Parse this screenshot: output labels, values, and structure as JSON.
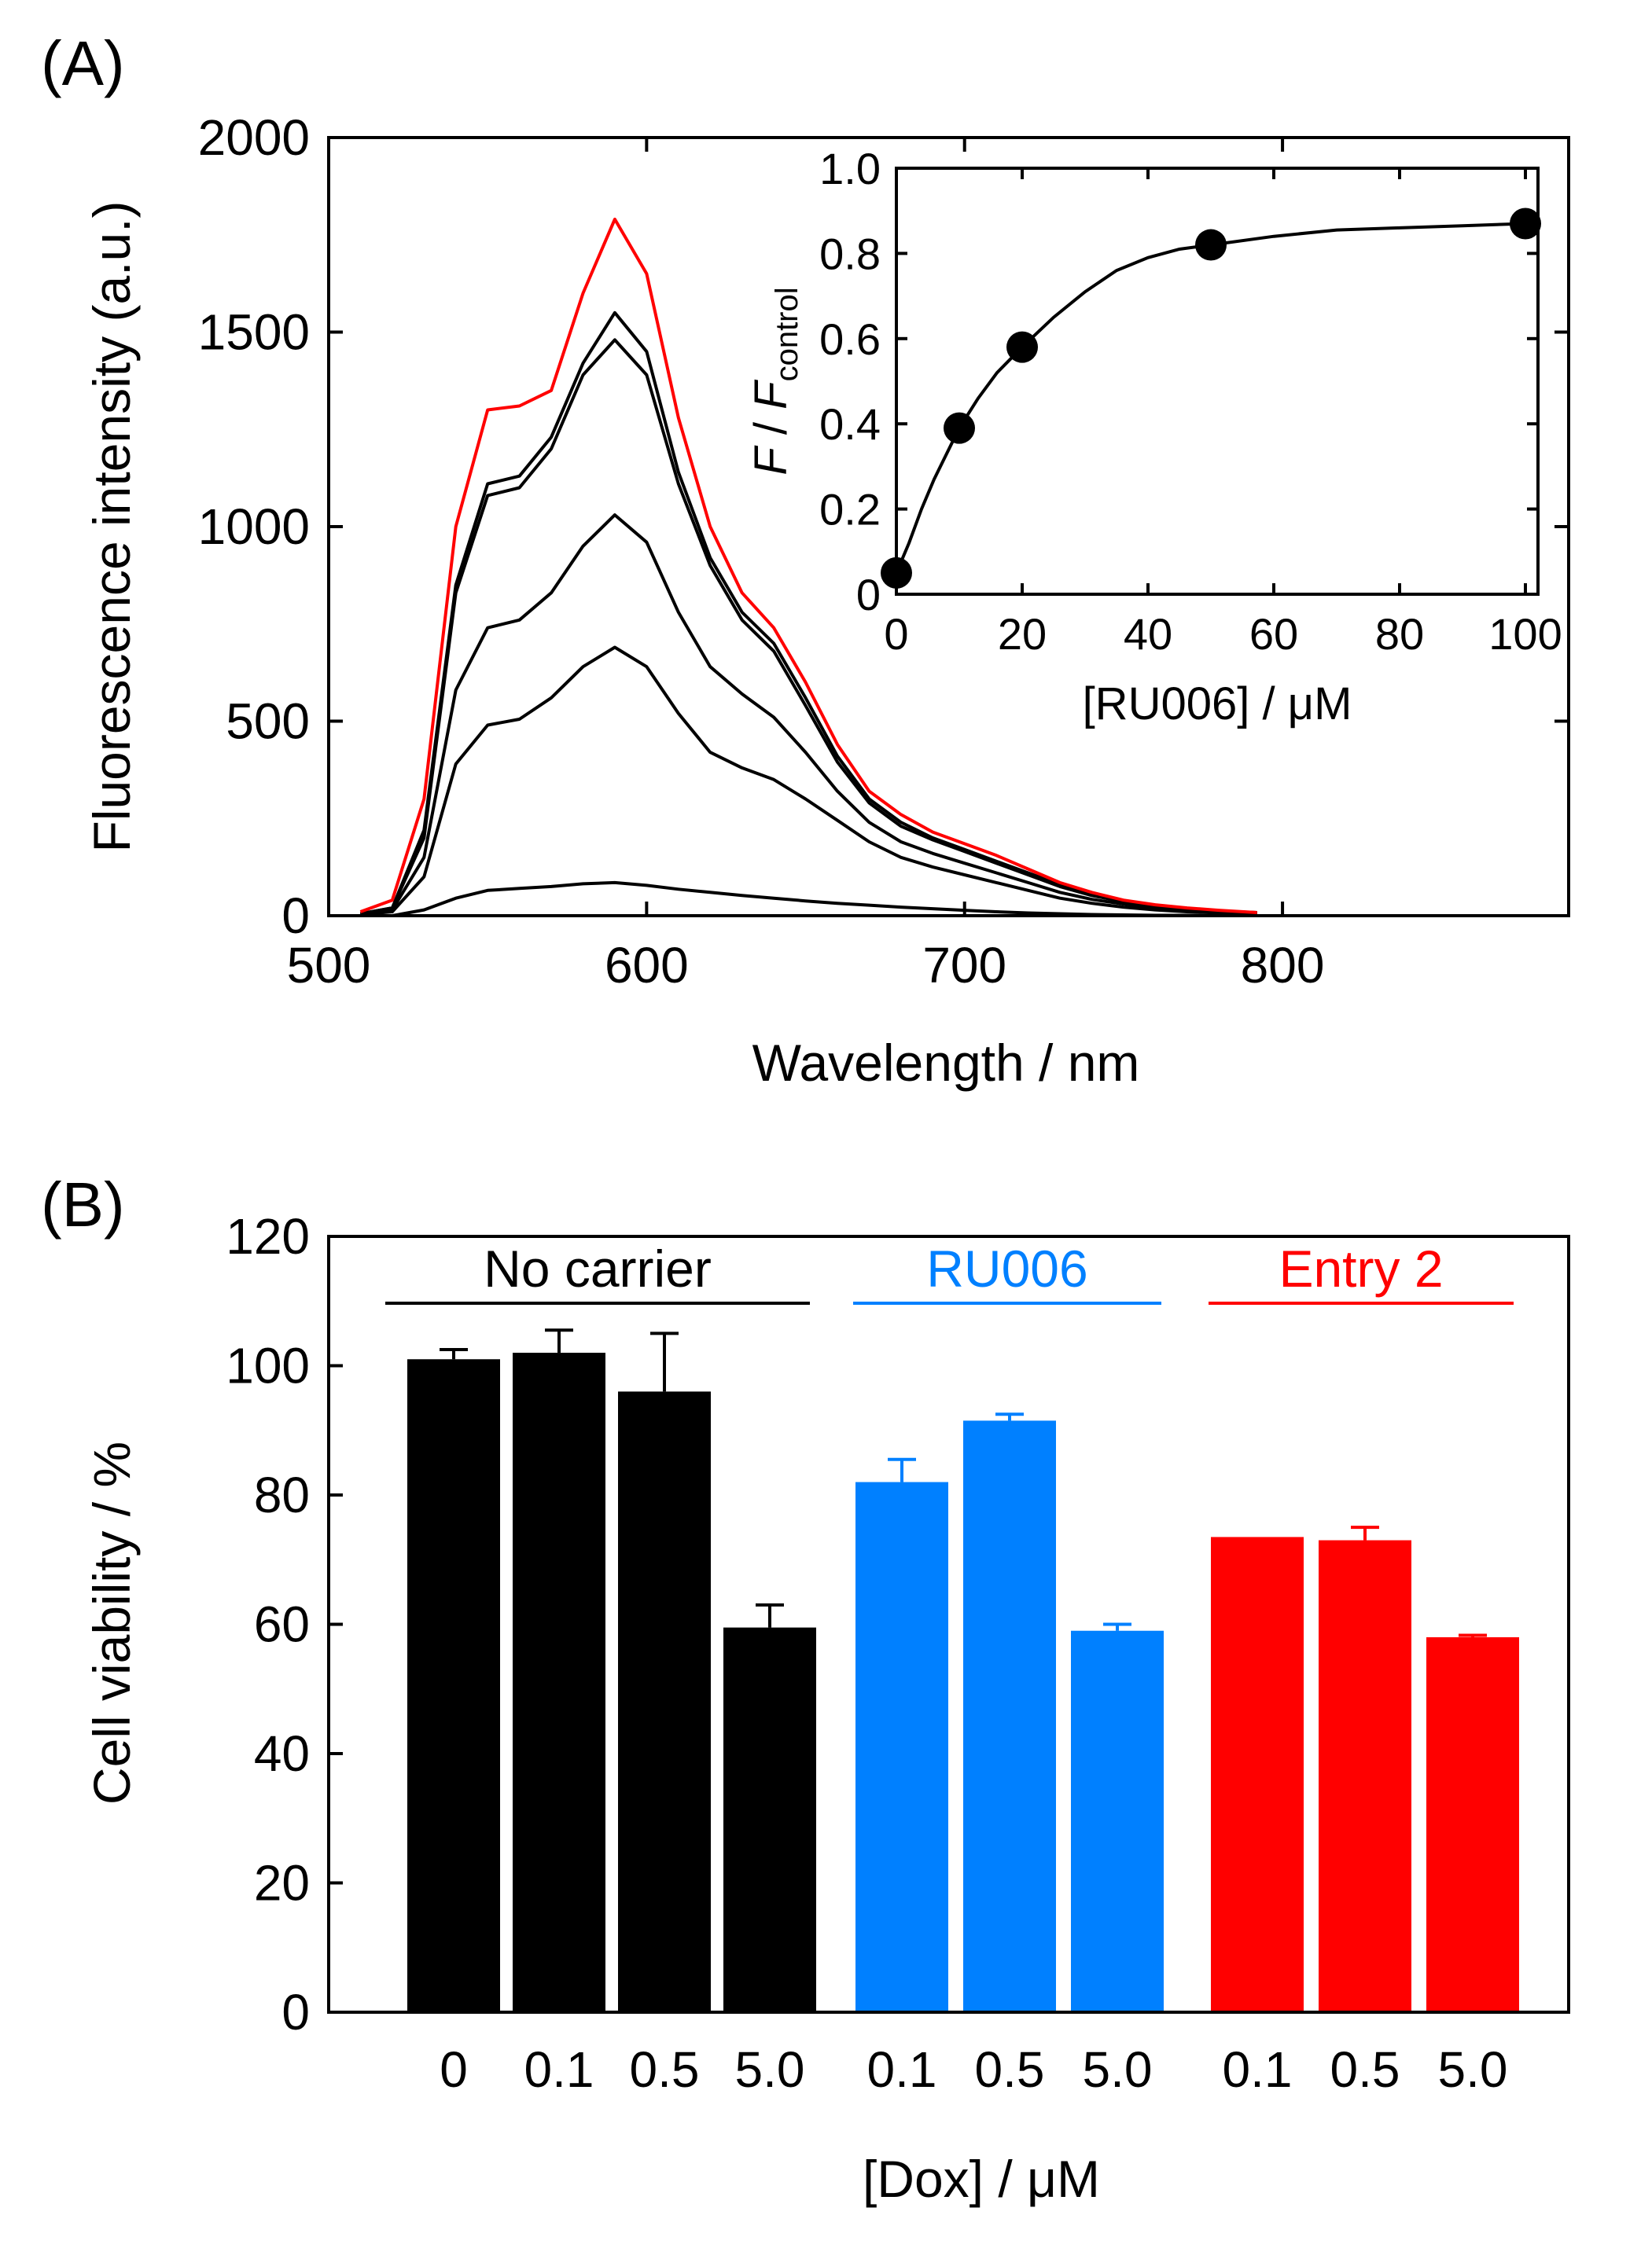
{
  "chart_data": [
    {
      "type": "line",
      "panel_label": "(A)",
      "xlabel": "Wavelength / nm",
      "ylabel": "Fluorescence intensity (a.u.)",
      "xlim": [
        500,
        890
      ],
      "ylim": [
        0,
        2000
      ],
      "xticks": [
        500,
        600,
        700,
        800
      ],
      "yticks": [
        0,
        500,
        1000,
        1500,
        2000
      ],
      "series": [
        {
          "name": "control",
          "color": "#ff0000",
          "x": [
            510,
            520,
            530,
            540,
            550,
            560,
            570,
            580,
            590,
            600,
            610,
            620,
            630,
            640,
            650,
            660,
            670,
            680,
            690,
            700,
            710,
            720,
            730,
            740,
            750,
            760,
            770,
            780,
            792
          ],
          "y": [
            10,
            40,
            300,
            1000,
            1300,
            1310,
            1350,
            1600,
            1790,
            1650,
            1280,
            1000,
            830,
            740,
            600,
            440,
            320,
            260,
            215,
            185,
            155,
            120,
            85,
            60,
            40,
            28,
            20,
            14,
            8
          ]
        },
        {
          "name": "trace-2",
          "color": "#000000",
          "x": [
            510,
            520,
            530,
            540,
            550,
            560,
            570,
            580,
            590,
            600,
            610,
            620,
            630,
            640,
            650,
            660,
            670,
            680,
            690,
            700,
            710,
            720,
            730,
            740,
            750,
            760,
            770,
            780,
            792
          ],
          "y": [
            5,
            20,
            220,
            850,
            1110,
            1130,
            1230,
            1420,
            1550,
            1450,
            1140,
            920,
            780,
            700,
            560,
            410,
            300,
            240,
            200,
            170,
            140,
            110,
            80,
            55,
            38,
            25,
            18,
            12,
            8
          ]
        },
        {
          "name": "trace-3",
          "color": "#000000",
          "x": [
            510,
            520,
            530,
            540,
            550,
            560,
            570,
            580,
            590,
            600,
            610,
            620,
            630,
            640,
            650,
            660,
            670,
            680,
            690,
            700,
            710,
            720,
            730,
            740,
            750,
            760,
            770,
            780,
            792
          ],
          "y": [
            5,
            20,
            200,
            830,
            1080,
            1100,
            1200,
            1390,
            1480,
            1390,
            1110,
            900,
            760,
            680,
            540,
            395,
            290,
            230,
            195,
            165,
            135,
            105,
            75,
            52,
            36,
            24,
            17,
            11,
            8
          ]
        },
        {
          "name": "trace-4",
          "color": "#000000",
          "x": [
            510,
            520,
            530,
            540,
            550,
            560,
            570,
            580,
            590,
            600,
            610,
            620,
            630,
            640,
            650,
            660,
            670,
            680,
            690,
            700,
            710,
            720,
            730,
            740,
            750,
            760,
            770,
            780,
            792
          ],
          "y": [
            3,
            15,
            150,
            580,
            740,
            760,
            830,
            950,
            1030,
            960,
            780,
            640,
            570,
            510,
            420,
            320,
            240,
            190,
            160,
            135,
            110,
            85,
            60,
            42,
            30,
            20,
            14,
            10,
            6
          ]
        },
        {
          "name": "trace-5",
          "color": "#000000",
          "x": [
            510,
            520,
            530,
            540,
            550,
            560,
            570,
            580,
            590,
            600,
            610,
            620,
            630,
            640,
            650,
            660,
            670,
            680,
            690,
            700,
            710,
            720,
            730,
            740,
            750,
            760,
            770,
            780,
            792
          ],
          "y": [
            3,
            10,
            100,
            390,
            490,
            505,
            560,
            640,
            690,
            640,
            520,
            420,
            380,
            350,
            300,
            245,
            190,
            150,
            125,
            105,
            85,
            65,
            45,
            32,
            22,
            15,
            10,
            7,
            5
          ]
        },
        {
          "name": "trace-6",
          "color": "#000000",
          "x": [
            510,
            520,
            530,
            540,
            550,
            560,
            570,
            580,
            590,
            600,
            610,
            620,
            630,
            640,
            650,
            660,
            670,
            680,
            690,
            700,
            710,
            720,
            730,
            740,
            750,
            760,
            770,
            780,
            792
          ],
          "y": [
            0,
            0,
            15,
            45,
            65,
            70,
            75,
            82,
            85,
            78,
            68,
            60,
            52,
            45,
            38,
            32,
            27,
            22,
            18,
            14,
            10,
            7,
            5,
            3,
            2,
            1,
            1,
            0,
            0
          ]
        }
      ]
    },
    {
      "type": "scatter",
      "xlabel": "[RU006] / μM",
      "ylabel_F": "F",
      "ylabel_sep": " / ",
      "ylabel_Fc": "F",
      "ylabel_sub": "control",
      "xlim": [
        0,
        102
      ],
      "ylim": [
        0,
        1.0
      ],
      "xticks": [
        0,
        20,
        40,
        60,
        80,
        100
      ],
      "xtick_labels": [
        "0",
        "20",
        "40",
        "60",
        "80",
        "100"
      ],
      "yticks": [
        0,
        0.2,
        0.4,
        0.6,
        0.8,
        1.0
      ],
      "ytick_labels": [
        "0",
        "0.2",
        "0.4",
        "0.6",
        "0.8",
        "1.0"
      ],
      "x": [
        0,
        10,
        20,
        50,
        100
      ],
      "y": [
        0.05,
        0.39,
        0.58,
        0.82,
        0.87
      ],
      "fit_curve": {
        "x": [
          0,
          2,
          4,
          6,
          8,
          10,
          13,
          16,
          20,
          25,
          30,
          35,
          40,
          45,
          50,
          60,
          70,
          80,
          90,
          100
        ],
        "y": [
          0.05,
          0.12,
          0.2,
          0.27,
          0.33,
          0.39,
          0.46,
          0.52,
          0.58,
          0.65,
          0.71,
          0.76,
          0.79,
          0.81,
          0.82,
          0.84,
          0.855,
          0.86,
          0.865,
          0.87
        ]
      }
    },
    {
      "type": "bar",
      "panel_label": "(B)",
      "xlabel": "[Dox] / μM",
      "ylabel": "Cell viability / %",
      "ylim": [
        0,
        120
      ],
      "yticks": [
        0,
        20,
        40,
        60,
        80,
        100,
        120
      ],
      "groups": [
        {
          "name": "No carrier",
          "color": "#000000",
          "categories": [
            "0",
            "0.1",
            "0.5",
            "5.0"
          ],
          "values": [
            101,
            102,
            96,
            59.5
          ],
          "errors": [
            1.5,
            3.5,
            9,
            3.5
          ]
        },
        {
          "name": "RU006",
          "color": "#0080ff",
          "categories": [
            "0.1",
            "0.5",
            "5.0"
          ],
          "values": [
            82,
            91.5,
            59
          ],
          "errors": [
            3.5,
            1,
            1
          ]
        },
        {
          "name": "Entry 2",
          "color": "#ff0000",
          "categories": [
            "0.1",
            "0.5",
            "5.0"
          ],
          "values": [
            73.5,
            73,
            58
          ],
          "errors": [
            0,
            2,
            0.3
          ]
        }
      ]
    }
  ]
}
